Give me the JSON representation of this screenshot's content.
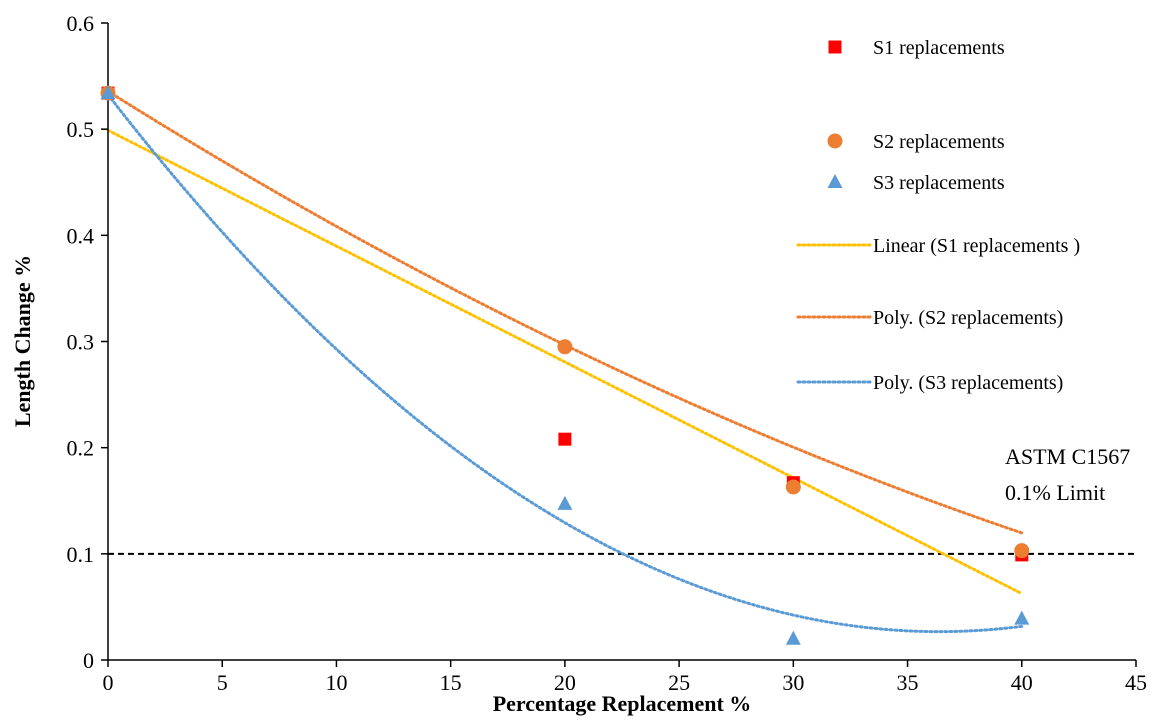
{
  "chart_data": {
    "type": "scatter",
    "title": "",
    "xlabel": "Percentage Replacement %",
    "ylabel": "Length Change %",
    "xlim": [
      0,
      45
    ],
    "ylim": [
      0,
      0.6
    ],
    "x_ticks": [
      0,
      5,
      10,
      15,
      20,
      25,
      30,
      35,
      40,
      45
    ],
    "y_ticks": [
      0,
      0.1,
      0.2,
      0.3,
      0.4,
      0.5,
      0.6
    ],
    "x_tick_labels": [
      "0",
      "5",
      "10",
      "15",
      "20",
      "25",
      "30",
      "35",
      "40",
      "45"
    ],
    "y_tick_labels": [
      "0",
      "0.1",
      "0.2",
      "0.3",
      "0.4",
      "0.5",
      "0.6"
    ],
    "grid": false,
    "legend_position": "top-right",
    "series": [
      {
        "name": "S1 replacements",
        "marker": "square",
        "color": "#ff0000",
        "points": [
          [
            0,
            0.534
          ],
          [
            20,
            0.208
          ],
          [
            30,
            0.167
          ],
          [
            40,
            0.099
          ]
        ]
      },
      {
        "name": "S2 replacements",
        "marker": "circle",
        "color": "#ed7d31",
        "points": [
          [
            0,
            0.534
          ],
          [
            20,
            0.295
          ],
          [
            30,
            0.163
          ],
          [
            40,
            0.103
          ]
        ]
      },
      {
        "name": "S3 replacements",
        "marker": "triangle",
        "color": "#5b9bd5",
        "points": [
          [
            0,
            0.534
          ],
          [
            20,
            0.147
          ],
          [
            30,
            0.02
          ],
          [
            40,
            0.039
          ]
        ]
      }
    ],
    "trendlines": [
      {
        "name": "Linear (S1 replacements )",
        "of_series": "S1 replacements",
        "kind": "linear",
        "color": "#ffc000",
        "coefficients": [
          0.4989,
          -0.01091
        ]
      },
      {
        "name": "Poly. (S2 replacements)",
        "of_series": "S2 replacements",
        "kind": "polynomial",
        "color": "#ed7d31",
        "coefficients": [
          0.5357,
          -0.0135,
          7.75e-05
        ]
      },
      {
        "name": "Poly. (S3 replacements)",
        "of_series": "S3 replacements",
        "kind": "polynomial",
        "color": "#5b9bd5",
        "coefficients": [
          0.5325,
          -0.0278,
          0.000382
        ]
      }
    ],
    "reference_line": {
      "y": 0.1,
      "color": "#000000",
      "style": "dashed",
      "label_lines": [
        "ASTM C1567",
        "0.1% Limit"
      ]
    }
  }
}
